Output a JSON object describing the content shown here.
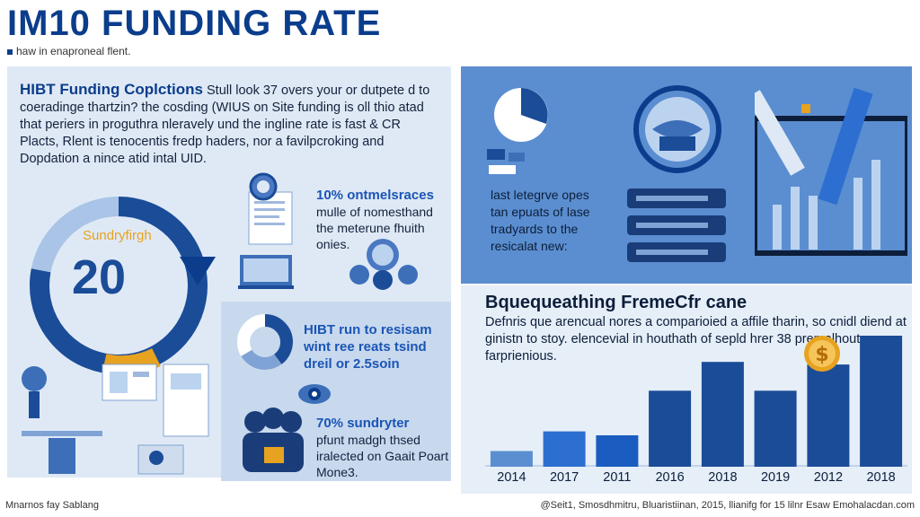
{
  "header": {
    "title": "IM10 FUNDING RATE",
    "subtitle": "haw in enaproneal flent."
  },
  "intro": {
    "lead": "HIBT Funding Coplctions",
    "text": " Stull look 37 overs your or dutpete d to coeradinge thartzin? the cosding (WIUS on Site funding is oll thio atad that periers in proguthra nleravely und the ingline rate is fast & CR Placts, Rlent is tenocentis fredp haders, nor a favilpcroking and Dopdation a nince atid intal UID."
  },
  "gauge": {
    "label": "Sundryfirgh",
    "value": "20",
    "progress": 0.78
  },
  "stat1": {
    "highlight": "10% ontmelsraces",
    "text": "mulle of nomesthand the meterune fhuith onies."
  },
  "right_note": {
    "line1": "last letegrve opes",
    "line2": "tan epuats of lase",
    "line3": "tradyards to the",
    "line4": "resicalat new:"
  },
  "stat2": {
    "highlight": "HIBT run to resisam wint ree reats tsind dreil or 2.5soin"
  },
  "stat3": {
    "highlight": "70% sundryter",
    "text": "pfunt madgh thsed iralected on Gaait Poart Mone3."
  },
  "chart": {
    "title": "Bquequeathing FremeCfr cane",
    "description": "Defnris que arencual nores a comparioied a affile tharin, so cnidl diend at ginistn to stoy. elencevial in houthath of sepld hrer 38 premalhout farprienious."
  },
  "chart_data": {
    "type": "bar",
    "title": "Bquequeathing FremeCfr cane",
    "categories": [
      "2014",
      "2017",
      "2011",
      "2016",
      "2018",
      "2019",
      "2012",
      "2018"
    ],
    "values": [
      12,
      27,
      24,
      58,
      80,
      58,
      78,
      100
    ],
    "ylim": [
      0,
      100
    ],
    "xlabel": "",
    "ylabel": ""
  },
  "footer": {
    "left": "Mnarnos fay Sablang",
    "right": "@Seit1, Smosdhmitru, Bluaristiinan, 2015, llianifg for 15 lilnr Esaw Emohalacdan.com"
  },
  "colors": {
    "primary": "#0b3d8c",
    "accent": "#e7a21f",
    "bar": "#1a4c98",
    "panel": "#5b8ed0"
  }
}
